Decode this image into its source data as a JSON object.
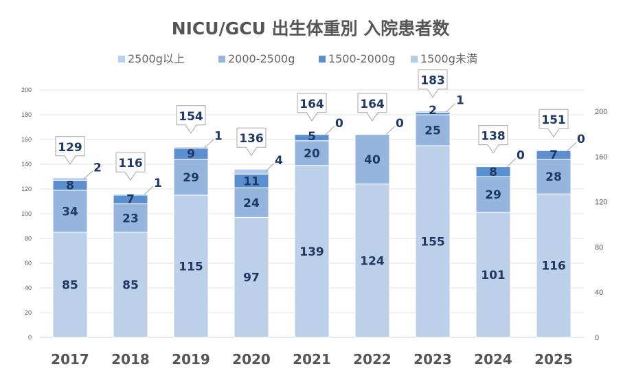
{
  "chart_data": {
    "type": "bar",
    "stacked": true,
    "title": "NICU/GCU 出生体重別 入院患者数",
    "categories": [
      "2017",
      "2018",
      "2019",
      "2020",
      "2021",
      "2022",
      "2023",
      "2024",
      "2025"
    ],
    "series": [
      {
        "name": "2500g以上",
        "color": "#bdd0ea",
        "values": [
          85,
          85,
          115,
          97,
          139,
          124,
          155,
          101,
          116
        ]
      },
      {
        "name": "2000-2500g",
        "color": "#95b4de",
        "values": [
          34,
          23,
          29,
          24,
          20,
          40,
          25,
          29,
          28
        ]
      },
      {
        "name": "1500-2000g",
        "color": "#5b8fcf",
        "values": [
          8,
          7,
          9,
          11,
          5,
          0,
          2,
          8,
          7
        ]
      },
      {
        "name": "1500g未満",
        "color": "#b4cbe9",
        "values": [
          2,
          1,
          1,
          4,
          0,
          0,
          1,
          0,
          0
        ]
      }
    ],
    "totals": [
      129,
      116,
      154,
      136,
      164,
      164,
      183,
      138,
      151
    ],
    "y_left": {
      "min": 0,
      "max": 200,
      "step": 20,
      "ticks": [
        "0",
        "20",
        "40",
        "60",
        "80",
        "100",
        "120",
        "140",
        "160",
        "180",
        "200"
      ]
    },
    "y_right": {
      "min": 0,
      "max": 200,
      "step": 40,
      "ticks": [
        "0",
        "40",
        "80",
        "120",
        "160",
        "200"
      ]
    },
    "grid": true,
    "legend_position": "top"
  }
}
